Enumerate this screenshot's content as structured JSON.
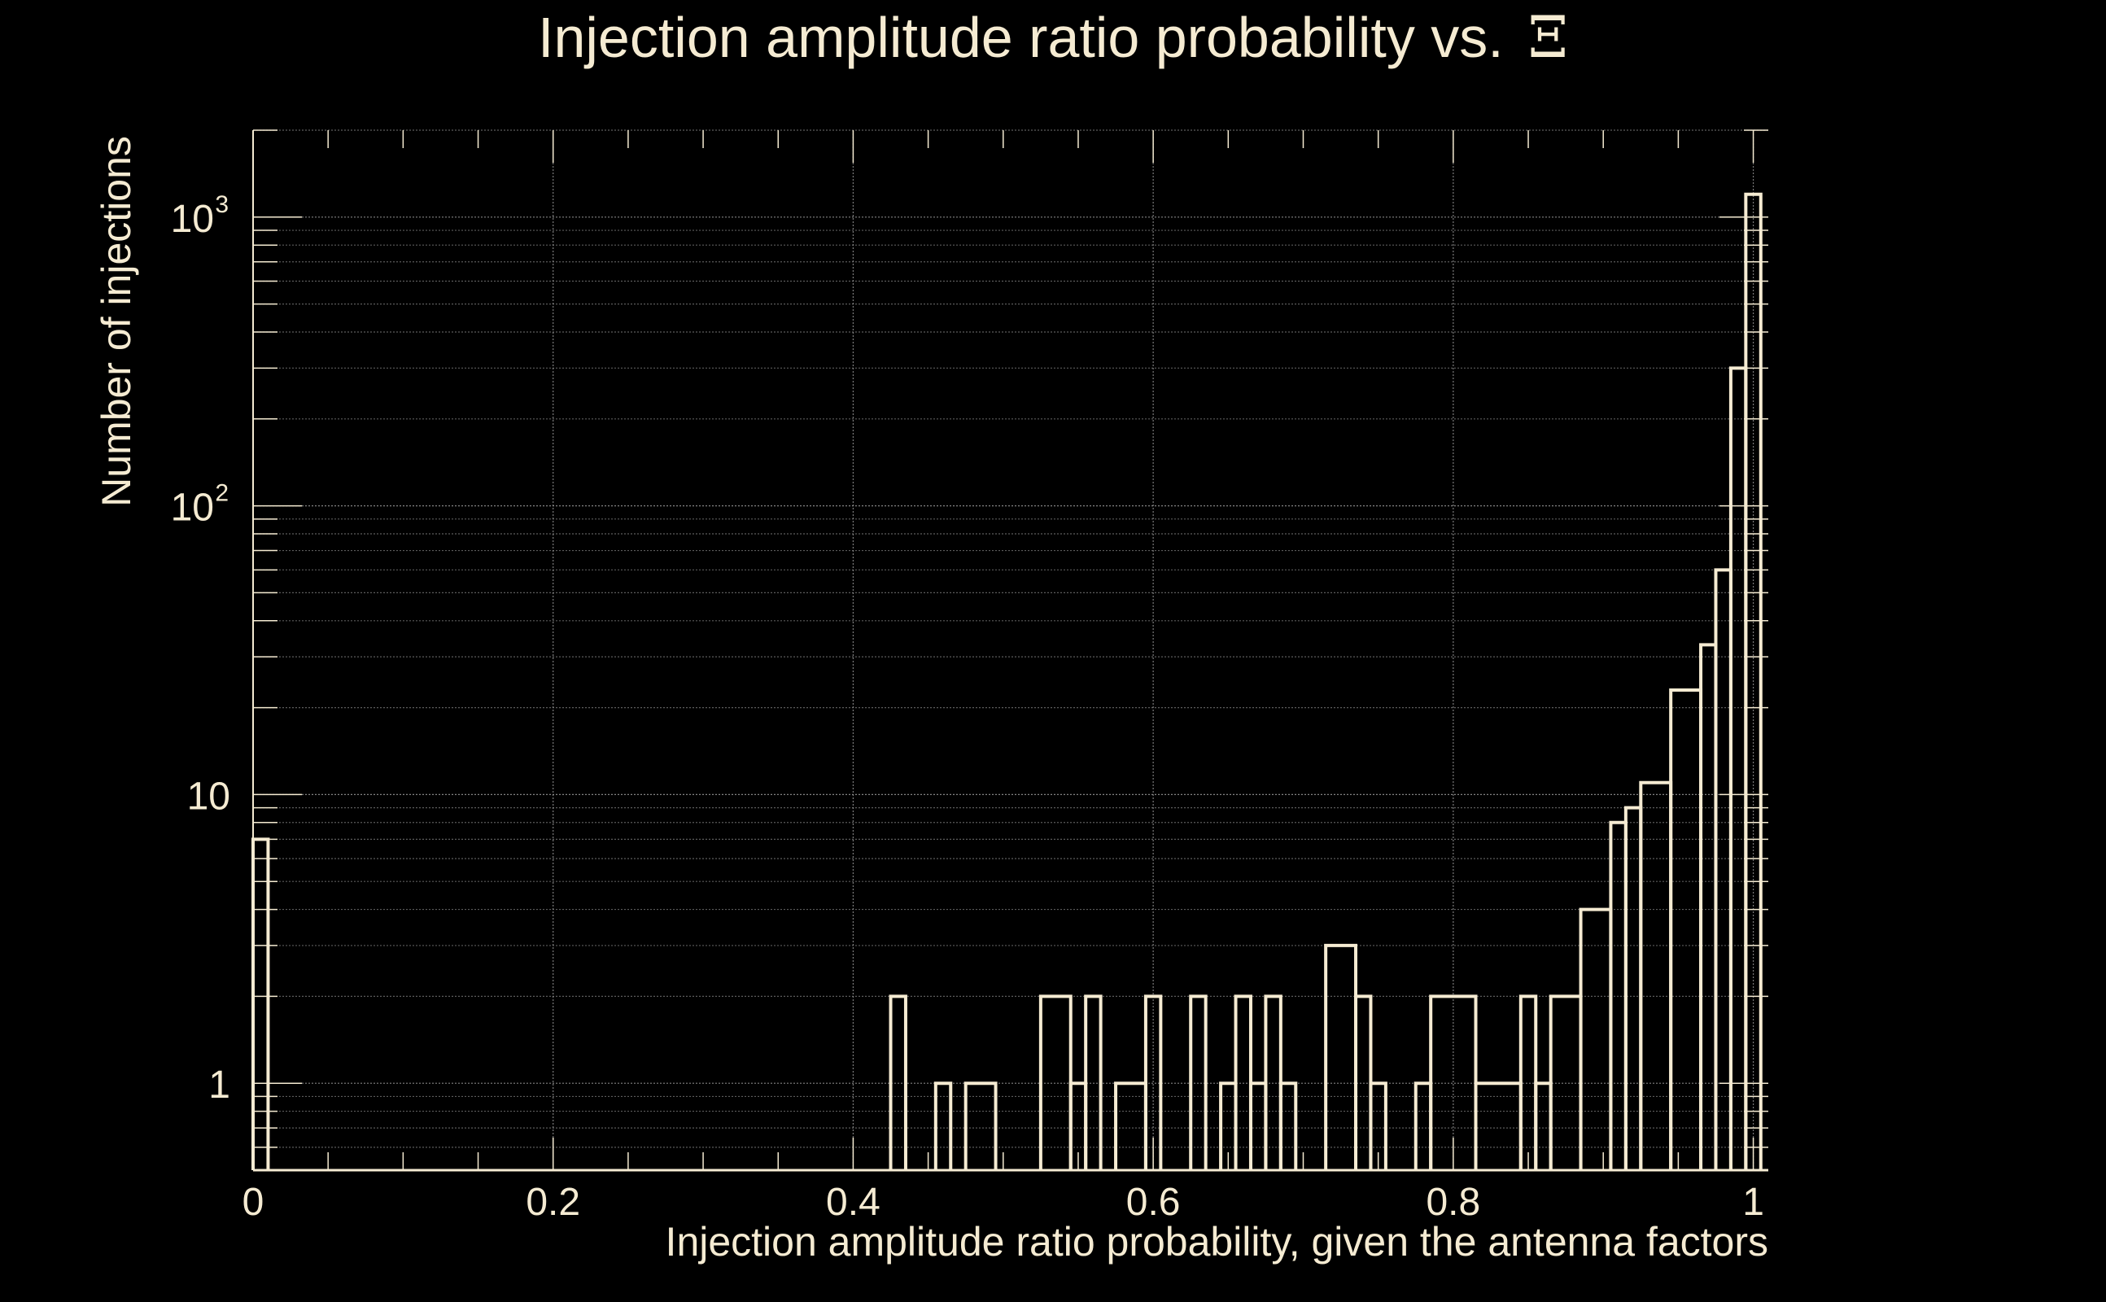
{
  "chart_data": {
    "type": "histogram",
    "title": "Injection amplitude ratio probability vs.",
    "title_symbol": "Ξ",
    "xlabel": "Injection amplitude ratio probability, given the antenna factors",
    "ylabel": "Number of injections",
    "xlim": [
      0,
      1.01
    ],
    "ylim": [
      0.5,
      2000
    ],
    "yscale": "log",
    "grid": true,
    "x_ticks": [
      {
        "value": 0,
        "label": "0"
      },
      {
        "value": 0.2,
        "label": "0.2"
      },
      {
        "value": 0.4,
        "label": "0.4"
      },
      {
        "value": 0.6,
        "label": "0.6"
      },
      {
        "value": 0.8,
        "label": "0.8"
      },
      {
        "value": 1,
        "label": "1"
      }
    ],
    "y_ticks": [
      {
        "value": 1,
        "base": "1",
        "exp": ""
      },
      {
        "value": 10,
        "base": "10",
        "exp": ""
      },
      {
        "value": 100,
        "base": "10",
        "exp": "2"
      },
      {
        "value": 1000,
        "base": "10",
        "exp": "3"
      }
    ],
    "bins": [
      {
        "x0": 0.0,
        "x1": 0.01,
        "count": 7
      },
      {
        "x0": 0.425,
        "x1": 0.435,
        "count": 2
      },
      {
        "x0": 0.455,
        "x1": 0.465,
        "count": 1
      },
      {
        "x0": 0.475,
        "x1": 0.495,
        "count": 1
      },
      {
        "x0": 0.525,
        "x1": 0.545,
        "count": 2
      },
      {
        "x0": 0.545,
        "x1": 0.555,
        "count": 1
      },
      {
        "x0": 0.555,
        "x1": 0.565,
        "count": 2
      },
      {
        "x0": 0.575,
        "x1": 0.595,
        "count": 1
      },
      {
        "x0": 0.595,
        "x1": 0.605,
        "count": 2
      },
      {
        "x0": 0.625,
        "x1": 0.635,
        "count": 2
      },
      {
        "x0": 0.645,
        "x1": 0.655,
        "count": 1
      },
      {
        "x0": 0.655,
        "x1": 0.665,
        "count": 2
      },
      {
        "x0": 0.665,
        "x1": 0.675,
        "count": 1
      },
      {
        "x0": 0.675,
        "x1": 0.685,
        "count": 2
      },
      {
        "x0": 0.685,
        "x1": 0.695,
        "count": 1
      },
      {
        "x0": 0.715,
        "x1": 0.735,
        "count": 3
      },
      {
        "x0": 0.735,
        "x1": 0.745,
        "count": 2
      },
      {
        "x0": 0.745,
        "x1": 0.755,
        "count": 1
      },
      {
        "x0": 0.775,
        "x1": 0.785,
        "count": 1
      },
      {
        "x0": 0.785,
        "x1": 0.815,
        "count": 2
      },
      {
        "x0": 0.815,
        "x1": 0.845,
        "count": 1
      },
      {
        "x0": 0.845,
        "x1": 0.855,
        "count": 2
      },
      {
        "x0": 0.855,
        "x1": 0.865,
        "count": 1
      },
      {
        "x0": 0.865,
        "x1": 0.885,
        "count": 2
      },
      {
        "x0": 0.885,
        "x1": 0.905,
        "count": 4
      },
      {
        "x0": 0.905,
        "x1": 0.915,
        "count": 8
      },
      {
        "x0": 0.915,
        "x1": 0.925,
        "count": 9
      },
      {
        "x0": 0.925,
        "x1": 0.945,
        "count": 11
      },
      {
        "x0": 0.945,
        "x1": 0.965,
        "count": 23
      },
      {
        "x0": 0.965,
        "x1": 0.975,
        "count": 33
      },
      {
        "x0": 0.975,
        "x1": 0.985,
        "count": 60
      },
      {
        "x0": 0.985,
        "x1": 0.995,
        "count": 300
      },
      {
        "x0": 0.995,
        "x1": 1.005,
        "count": 1200
      }
    ]
  },
  "colors": {
    "background": "#000000",
    "foreground": "#f5ebd2",
    "grid": "#9a9a9a"
  }
}
